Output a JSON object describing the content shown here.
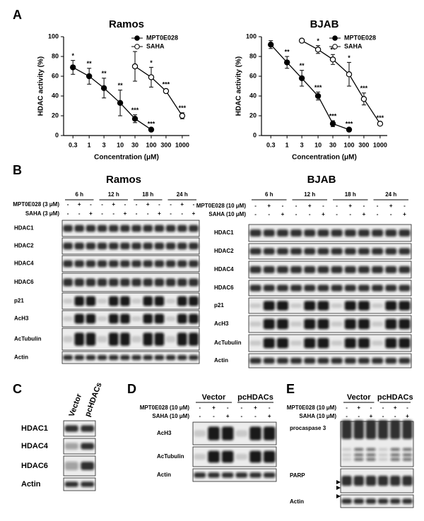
{
  "panel_labels": [
    "A",
    "B",
    "C",
    "D",
    "E"
  ],
  "chart_data": [
    {
      "type": "line",
      "title": "Ramos",
      "x_label": "Concentration (μM)",
      "y_label": "HDAC activity (%)",
      "x_scale": "log",
      "x": [
        0.3,
        1,
        3,
        10,
        30,
        100,
        300,
        1000
      ],
      "xlim": [
        0.15,
        1700
      ],
      "xticks": [
        0.3,
        1,
        3,
        10,
        30,
        100,
        300,
        1000
      ],
      "ylim": [
        0,
        100
      ],
      "yticks": [
        0,
        20,
        40,
        60,
        80,
        100
      ],
      "legend": "upper right",
      "series": [
        {
          "name": "MPT0E028",
          "color": "#000000",
          "fill": "#000000",
          "values": [
            69,
            60,
            48,
            33,
            17,
            6,
            null,
            null
          ],
          "errors": [
            7,
            8,
            10,
            13,
            4,
            1,
            null,
            null
          ],
          "significance": [
            "*",
            "**",
            "**",
            "**",
            "***",
            "***",
            null,
            null
          ]
        },
        {
          "name": "SAHA",
          "color": "#000000",
          "fill": "#ffffff",
          "values": [
            null,
            null,
            null,
            null,
            70,
            59,
            45,
            20
          ],
          "errors": [
            null,
            null,
            null,
            null,
            15,
            10,
            2,
            3
          ],
          "significance": [
            null,
            null,
            null,
            null,
            null,
            "*",
            "***",
            "***"
          ]
        }
      ]
    },
    {
      "type": "line",
      "title": "BJAB",
      "x_label": "Concentration (μM)",
      "y_label": "HDAC activity (%)",
      "x_scale": "log",
      "x": [
        0.3,
        1,
        3,
        10,
        30,
        100,
        300,
        1000
      ],
      "xlim": [
        0.15,
        1700
      ],
      "xticks": [
        0.3,
        1,
        3,
        10,
        30,
        100,
        300,
        1000
      ],
      "ylim": [
        0,
        100
      ],
      "yticks": [
        0,
        20,
        40,
        60,
        80,
        100
      ],
      "legend": "upper right",
      "series": [
        {
          "name": "MPT0E028",
          "color": "#000000",
          "fill": "#000000",
          "values": [
            92,
            74,
            58,
            40,
            12,
            6,
            null,
            null
          ],
          "errors": [
            4,
            6,
            8,
            4,
            3,
            1,
            null,
            null
          ],
          "significance": [
            null,
            "**",
            "**",
            "***",
            "***",
            "***",
            null,
            null
          ]
        },
        {
          "name": "SAHA",
          "color": "#000000",
          "fill": "#ffffff",
          "values": [
            null,
            null,
            96,
            87,
            77,
            62,
            37,
            12
          ],
          "errors": [
            null,
            null,
            1,
            4,
            5,
            12,
            6,
            1
          ],
          "significance": [
            null,
            null,
            null,
            "*",
            "**",
            "*",
            "***",
            "***"
          ]
        }
      ]
    }
  ],
  "blots": [
    {
      "title": "Ramos",
      "time_points": [
        "6 h",
        "12 h",
        "18 h",
        "24 h"
      ],
      "treatments": [
        {
          "label": "MPT0E028 (3 μM)",
          "signs": [
            "-",
            "+",
            "-",
            "-",
            "+",
            "-",
            "-",
            "+",
            "-",
            "-",
            "+",
            "-"
          ]
        },
        {
          "label": "SAHA (3 μM)",
          "signs": [
            "-",
            "-",
            "+",
            "-",
            "-",
            "+",
            "-",
            "-",
            "+",
            "-",
            "-",
            "+"
          ]
        }
      ],
      "proteins": [
        "HDAC1",
        "HDAC2",
        "HDAC4",
        "HDAC6",
        "p21",
        "AcH3",
        "AcTubulin",
        "Actin"
      ]
    },
    {
      "title": "BJAB",
      "time_points": [
        "6 h",
        "12 h",
        "18 h",
        "24 h"
      ],
      "treatments": [
        {
          "label": "MPT0E028 (10 μM)",
          "signs": [
            "-",
            "+",
            "-",
            "-",
            "+",
            "-",
            "-",
            "+",
            "-",
            "-",
            "+",
            "-"
          ]
        },
        {
          "label": "SAHA (10 μM)",
          "signs": [
            "-",
            "-",
            "+",
            "-",
            "-",
            "+",
            "-",
            "-",
            "+",
            "-",
            "-",
            "+"
          ]
        }
      ],
      "proteins": [
        "HDAC1",
        "HDAC2",
        "HDAC4",
        "HDAC6",
        "p21",
        "AcH3",
        "AcTubulin",
        "Actin"
      ]
    },
    {
      "lanes": [
        "Vector",
        "pcHDACs"
      ],
      "proteins": [
        "HDAC1",
        "HDAC4",
        "HDAC6",
        "Actin"
      ]
    },
    {
      "groups": [
        "Vector",
        "pcHDACs"
      ],
      "treatments": [
        {
          "label": "MPT0E028 (10 μM)",
          "signs": [
            "-",
            "+",
            "-",
            "-",
            "+",
            "-"
          ]
        },
        {
          "label": "SAHA (10 μM)",
          "signs": [
            "-",
            "-",
            "+",
            "-",
            "-",
            "+"
          ]
        }
      ],
      "proteins": [
        "AcH3",
        "AcTubulin",
        "Actin"
      ]
    },
    {
      "groups": [
        "Vector",
        "pcHDACs"
      ],
      "treatments": [
        {
          "label": "MPT0E028 (10 μM)",
          "signs": [
            "-",
            "+",
            "-",
            "-",
            "+",
            "-"
          ]
        },
        {
          "label": "SAHA (10 μM)",
          "signs": [
            "-",
            "-",
            "+",
            "-",
            "-",
            "+"
          ]
        }
      ],
      "proteins": [
        "procaspase 3",
        "PARP",
        "Actin"
      ]
    }
  ]
}
